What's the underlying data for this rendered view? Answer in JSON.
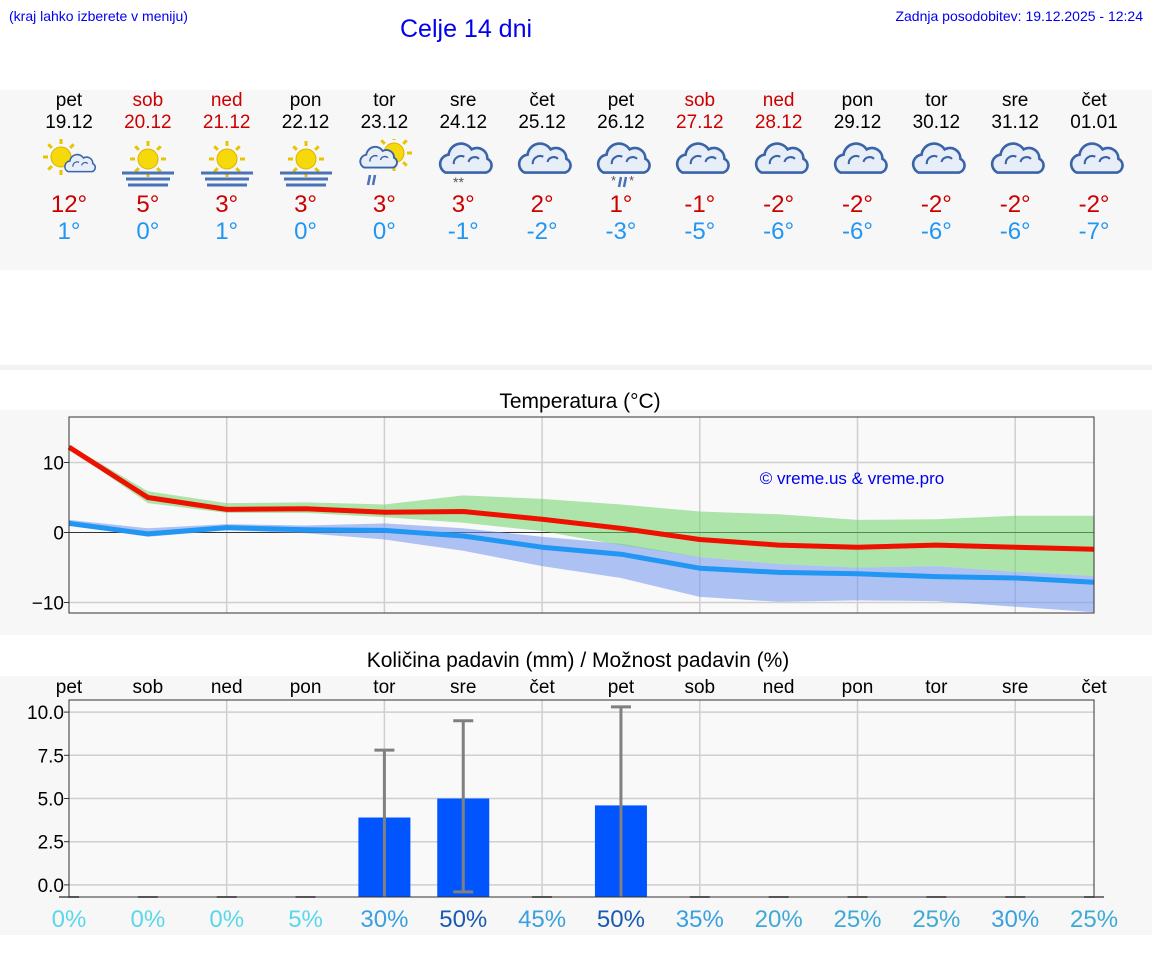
{
  "header": {
    "menu_hint": "(kraj lahko izberete v meniju)",
    "title": "Celje 14 dni",
    "last_update": "Zadnja posodobitev: 19.12.2025 - 12:24"
  },
  "colors": {
    "link": "#0000ee",
    "weekend": "#cc0000",
    "max_line": "#ee1100",
    "min_line": "#2196f3",
    "bar": "#0055ff"
  },
  "days": [
    {
      "name": "pet",
      "date": "19.12",
      "weekend": false,
      "icon": "sun-cloud-icon",
      "max": "12°",
      "min": "1°"
    },
    {
      "name": "sob",
      "date": "20.12",
      "weekend": true,
      "icon": "sun-fog-icon",
      "max": "5°",
      "min": "0°"
    },
    {
      "name": "ned",
      "date": "21.12",
      "weekend": true,
      "icon": "sun-fog-icon",
      "max": "3°",
      "min": "1°"
    },
    {
      "name": "pon",
      "date": "22.12",
      "weekend": false,
      "icon": "sun-fog-icon",
      "max": "3°",
      "min": "0°"
    },
    {
      "name": "tor",
      "date": "23.12",
      "weekend": false,
      "icon": "sun-rain-cloud-icon",
      "max": "3°",
      "min": "0°"
    },
    {
      "name": "sre",
      "date": "24.12",
      "weekend": false,
      "icon": "cloud-snow-icon",
      "max": "3°",
      "min": "-1°"
    },
    {
      "name": "čet",
      "date": "25.12",
      "weekend": false,
      "icon": "cloud-icon",
      "max": "2°",
      "min": "-2°"
    },
    {
      "name": "pet",
      "date": "26.12",
      "weekend": false,
      "icon": "cloud-sleet-icon",
      "max": "1°",
      "min": "-3°"
    },
    {
      "name": "sob",
      "date": "27.12",
      "weekend": true,
      "icon": "cloud-icon",
      "max": "-1°",
      "min": "-5°"
    },
    {
      "name": "ned",
      "date": "28.12",
      "weekend": true,
      "icon": "cloud-icon",
      "max": "-2°",
      "min": "-6°"
    },
    {
      "name": "pon",
      "date": "29.12",
      "weekend": false,
      "icon": "cloud-icon",
      "max": "-2°",
      "min": "-6°"
    },
    {
      "name": "tor",
      "date": "30.12",
      "weekend": false,
      "icon": "cloud-icon",
      "max": "-2°",
      "min": "-6°"
    },
    {
      "name": "sre",
      "date": "31.12",
      "weekend": false,
      "icon": "cloud-icon",
      "max": "-2°",
      "min": "-6°"
    },
    {
      "name": "čet",
      "date": "01.01",
      "weekend": false,
      "icon": "cloud-icon",
      "max": "-2°",
      "min": "-7°"
    }
  ],
  "chart_data": [
    {
      "type": "line",
      "title": "Temperatura (°C)",
      "watermark": "© vreme.us & vreme.pro",
      "xlabel": "",
      "ylabel": "",
      "ylim": [
        -11.5,
        16.5
      ],
      "yticks": [
        10,
        0,
        -10
      ],
      "ytick_labels": [
        "10",
        "0",
        "−10"
      ],
      "x": [
        0,
        1,
        2,
        3,
        4,
        5,
        6,
        7,
        8,
        9,
        10,
        11,
        12,
        13
      ],
      "grid": true,
      "series": [
        {
          "name": "max",
          "values": [
            12.2,
            5.0,
            3.3,
            3.4,
            2.9,
            3.0,
            1.9,
            0.6,
            -1.0,
            -1.8,
            -2.1,
            -1.8,
            -2.1,
            -2.4
          ]
        },
        {
          "name": "min",
          "values": [
            1.3,
            -0.2,
            0.7,
            0.4,
            0.3,
            -0.5,
            -2.1,
            -3.1,
            -5.1,
            -5.7,
            -5.9,
            -6.3,
            -6.5,
            -7.1
          ]
        }
      ],
      "bands": [
        {
          "name": "max_range",
          "upper": [
            12.5,
            5.9,
            4.2,
            4.3,
            4.0,
            5.3,
            4.8,
            4.0,
            3.0,
            2.6,
            1.8,
            1.9,
            2.4,
            2.4
          ],
          "lower": [
            12.0,
            4.2,
            2.8,
            2.8,
            2.2,
            1.4,
            0.2,
            -1.8,
            -3.5,
            -4.5,
            -5.0,
            -4.8,
            -5.6,
            -6.2
          ]
        },
        {
          "name": "min_range",
          "upper": [
            1.8,
            0.6,
            1.2,
            1.0,
            1.3,
            0.6,
            -0.6,
            -1.6,
            -3.5,
            -4.5,
            -5.0,
            -4.8,
            -5.6,
            -6.2
          ],
          "lower": [
            1.0,
            -0.6,
            0.3,
            -0.1,
            -1.0,
            -2.6,
            -4.8,
            -6.5,
            -9.2,
            -9.9,
            -9.7,
            -9.8,
            -10.6,
            -11.4
          ]
        }
      ]
    },
    {
      "type": "bar",
      "title": "Količina padavin (mm) / Možnost padavin (%)",
      "categories": [
        "pet",
        "sob",
        "ned",
        "pon",
        "tor",
        "sre",
        "čet",
        "pet",
        "sob",
        "ned",
        "pon",
        "tor",
        "sre",
        "čet"
      ],
      "values": [
        0,
        0,
        0,
        0,
        3.9,
        5.0,
        0,
        4.6,
        0,
        0,
        0,
        0,
        0,
        0
      ],
      "error_max": [
        0,
        0,
        0,
        0,
        7.8,
        9.5,
        0,
        10.3,
        0,
        0,
        0,
        0,
        0,
        0
      ],
      "error_min": [
        0,
        0,
        0,
        0,
        0,
        -0.4,
        0,
        0,
        0,
        0,
        0,
        0,
        0,
        0
      ],
      "probability": [
        "0%",
        "0%",
        "0%",
        "5%",
        "30%",
        "50%",
        "45%",
        "50%",
        "35%",
        "20%",
        "25%",
        "25%",
        "30%",
        "25%"
      ],
      "probability_values": [
        0,
        0,
        0,
        5,
        30,
        50,
        45,
        50,
        35,
        20,
        25,
        25,
        30,
        25
      ],
      "ylim": [
        -0.7,
        10.7
      ],
      "yticks": [
        0,
        2.5,
        5,
        7.5,
        10
      ],
      "ytick_labels": [
        "0.0",
        "2.5",
        "5.0",
        "7.5",
        "10.0"
      ],
      "grid": true
    }
  ]
}
